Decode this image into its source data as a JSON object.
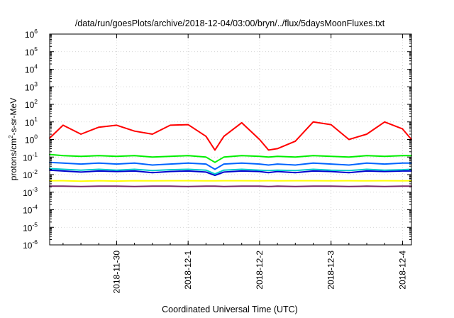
{
  "chart_data": {
    "type": "line",
    "title": "/data/run/goesPlots/archive/2018-12-04/03:00/bryn/../flux/5daysMoonFluxes.txt",
    "xlabel": "Coordinated Universal Time (UTC)",
    "ylabel": {
      "base": "protons/cm",
      "sup": "2",
      "rest": "-s-sr-MeV"
    },
    "y_scale": "log",
    "ylim": [
      1e-06,
      1000000.0
    ],
    "xlim": [
      "2018-11-29T01:30",
      "2018-12-04T03:00"
    ],
    "grid": true,
    "legend": "none",
    "x_ticks": [
      {
        "t": "2018-11-30T00:00",
        "label": "2018-11-30"
      },
      {
        "t": "2018-12-01T00:00",
        "label": "2018-12-1"
      },
      {
        "t": "2018-12-02T00:00",
        "label": "2018-12-2"
      },
      {
        "t": "2018-12-03T00:00",
        "label": "2018-12-3"
      },
      {
        "t": "2018-12-04T00:00",
        "label": "2018-12-4"
      }
    ],
    "y_ticks": [
      {
        "exp": -6
      },
      {
        "exp": -5
      },
      {
        "exp": -4
      },
      {
        "exp": -3
      },
      {
        "exp": -2
      },
      {
        "exp": -1
      },
      {
        "exp": 0
      },
      {
        "exp": 1
      },
      {
        "exp": 2
      },
      {
        "exp": 3
      },
      {
        "exp": 4
      },
      {
        "exp": 5
      },
      {
        "exp": 6
      }
    ],
    "x": [
      "2018-11-29T01:30",
      "2018-11-29T06:00",
      "2018-11-29T12:00",
      "2018-11-29T18:00",
      "2018-11-30T00:00",
      "2018-11-30T06:00",
      "2018-11-30T12:00",
      "2018-11-30T18:00",
      "2018-12-01T00:00",
      "2018-12-01T06:00",
      "2018-12-01T09:00",
      "2018-12-01T12:00",
      "2018-12-01T18:00",
      "2018-12-02T00:00",
      "2018-12-02T03:00",
      "2018-12-02T06:00",
      "2018-12-02T12:00",
      "2018-12-02T18:00",
      "2018-12-03T00:00",
      "2018-12-03T06:00",
      "2018-12-03T12:00",
      "2018-12-03T18:00",
      "2018-12-04T00:00",
      "2018-12-04T03:00"
    ],
    "series": [
      {
        "color": "#ff0000",
        "values": [
          1.2,
          6.5,
          2.0,
          5.0,
          6.5,
          3.0,
          2.0,
          6.5,
          7.0,
          1.5,
          0.25,
          1.5,
          9.0,
          1.0,
          0.25,
          0.3,
          0.8,
          10.0,
          7.0,
          1.0,
          2.0,
          10.0,
          4.0,
          1.0
        ]
      },
      {
        "color": "#00ee00",
        "values": [
          0.14,
          0.12,
          0.11,
          0.12,
          0.11,
          0.12,
          0.1,
          0.11,
          0.12,
          0.1,
          0.05,
          0.1,
          0.12,
          0.11,
          0.1,
          0.11,
          0.1,
          0.12,
          0.11,
          0.1,
          0.12,
          0.11,
          0.12,
          0.12
        ]
      },
      {
        "color": "#0064ff",
        "values": [
          0.05,
          0.045,
          0.04,
          0.045,
          0.04,
          0.045,
          0.035,
          0.04,
          0.045,
          0.04,
          0.02,
          0.04,
          0.045,
          0.04,
          0.035,
          0.04,
          0.035,
          0.045,
          0.04,
          0.035,
          0.045,
          0.04,
          0.045,
          0.045
        ]
      },
      {
        "color": "#00cccc",
        "values": [
          0.022,
          0.02,
          0.018,
          0.02,
          0.018,
          0.02,
          0.017,
          0.019,
          0.02,
          0.018,
          0.011,
          0.018,
          0.02,
          0.018,
          0.017,
          0.018,
          0.017,
          0.02,
          0.018,
          0.017,
          0.02,
          0.018,
          0.019,
          0.02
        ]
      },
      {
        "color": "#0000cc",
        "values": [
          0.018,
          0.016,
          0.014,
          0.016,
          0.015,
          0.016,
          0.013,
          0.015,
          0.016,
          0.014,
          0.009,
          0.014,
          0.016,
          0.015,
          0.013,
          0.015,
          0.013,
          0.016,
          0.015,
          0.013,
          0.016,
          0.015,
          0.016,
          0.016
        ]
      },
      {
        "color": "#ffff00",
        "values": [
          0.0045,
          0.0045,
          0.0042,
          0.0045,
          0.0043,
          0.0045,
          0.0044,
          0.0045,
          0.0045,
          0.0044,
          0.0044,
          0.0045,
          0.0045,
          0.0044,
          0.0045,
          0.0044,
          0.0045,
          0.0045,
          0.0044,
          0.0045,
          0.0044,
          0.0045,
          0.0044,
          0.0045
        ]
      },
      {
        "color": "#7a2a6a",
        "values": [
          0.0022,
          0.0022,
          0.0021,
          0.0022,
          0.0022,
          0.0021,
          0.0022,
          0.0022,
          0.0021,
          0.0022,
          0.0022,
          0.0021,
          0.0022,
          0.0022,
          0.0021,
          0.0022,
          0.0021,
          0.0022,
          0.0022,
          0.0021,
          0.0022,
          0.0021,
          0.0022,
          0.0022
        ]
      }
    ]
  }
}
